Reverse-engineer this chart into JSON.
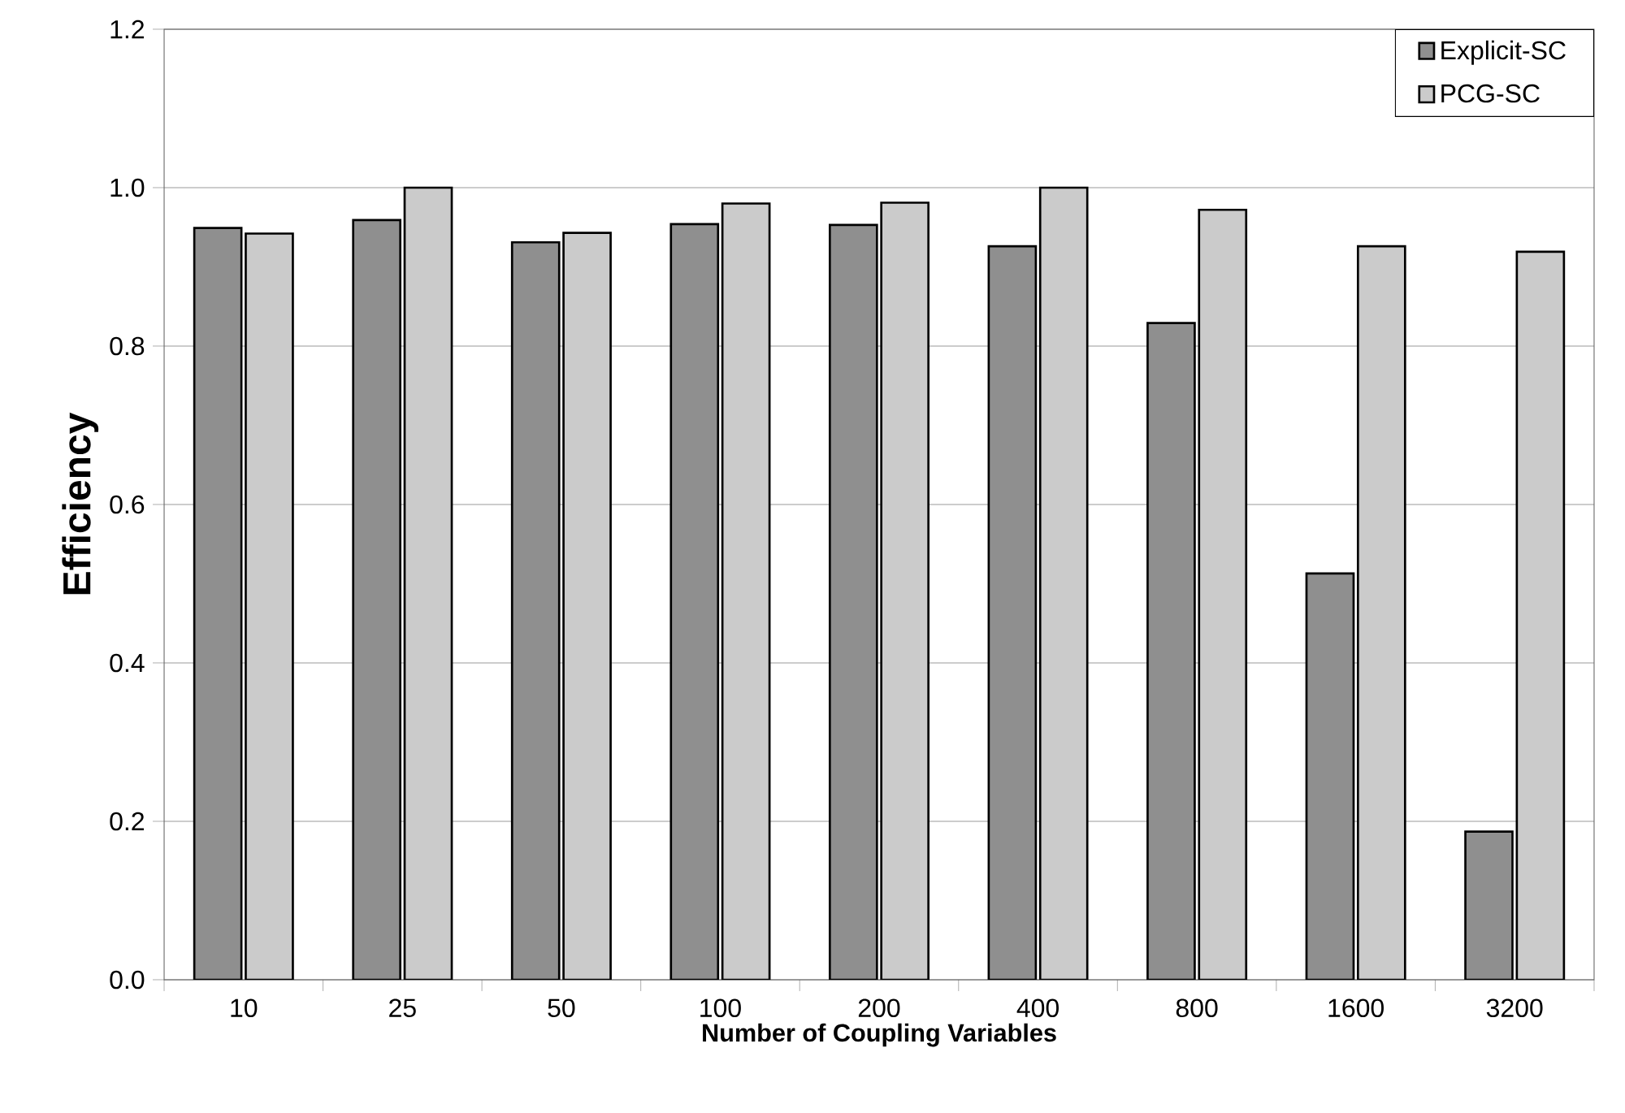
{
  "chart_data": {
    "type": "bar",
    "xlabel": "Number of Coupling Variables",
    "ylabel": "Efficiency",
    "categories": [
      "10",
      "25",
      "50",
      "100",
      "200",
      "400",
      "800",
      "1600",
      "3200"
    ],
    "series": [
      {
        "name": "Explicit-SC",
        "color": "#8f8f8f",
        "values": [
          0.949,
          0.959,
          0.931,
          0.954,
          0.953,
          0.926,
          0.829,
          0.513,
          0.187
        ]
      },
      {
        "name": "PCG-SC",
        "color": "#cbcbcb",
        "values": [
          0.942,
          1.0,
          0.943,
          0.98,
          0.981,
          1.0,
          0.972,
          0.926,
          0.919
        ]
      }
    ],
    "ylim": [
      0,
      1.2
    ],
    "yticks": [
      {
        "value": 0,
        "label": "0.0"
      },
      {
        "value": 0.2,
        "label": "0.2"
      },
      {
        "value": 0.4,
        "label": "0.4"
      },
      {
        "value": 0.6,
        "label": "0.6"
      },
      {
        "value": 0.8,
        "label": "0.8"
      },
      {
        "value": 1.0,
        "label": "1.0"
      },
      {
        "value": 1.2,
        "label": "1.2"
      }
    ],
    "grid": "y",
    "legend": "top right"
  }
}
